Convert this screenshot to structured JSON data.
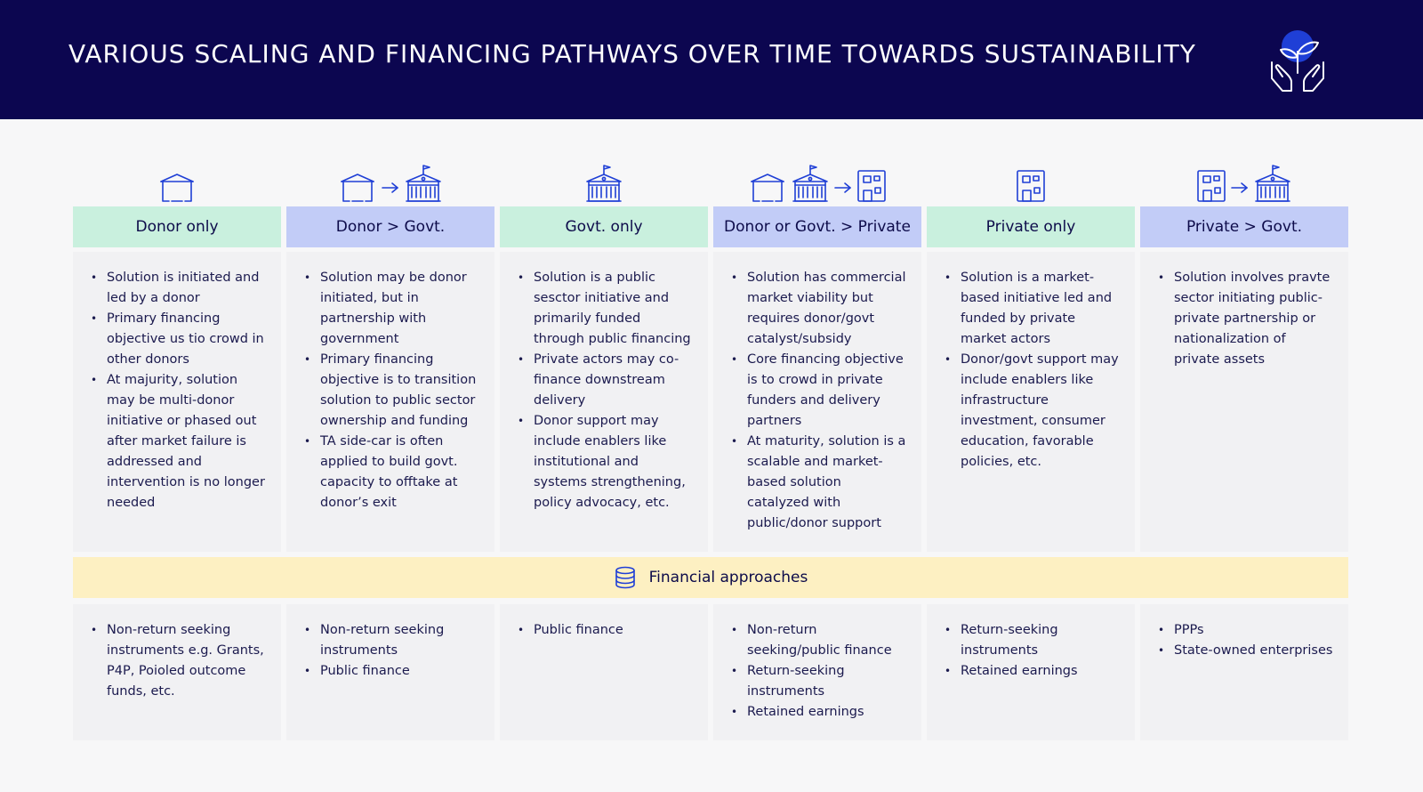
{
  "header": {
    "title": "VARIOUS SCALING AND FINANCING PATHWAYS OVER TIME TOWARDS SUSTAINABILITY",
    "logo_icon": "hands-plant-icon"
  },
  "colors": {
    "header_bg": "#0c0650",
    "green_header": "#c9f0de",
    "blue_header": "#c2ccf7",
    "yellow_bar": "#fdf0c2",
    "icon_blue": "#1f3fd6"
  },
  "pathways": [
    {
      "title": "Donor only",
      "icons": [
        "house-icon"
      ],
      "points": [
        "Solution is initiated and led by a donor",
        "Primary financing objective us tio crowd in other donors",
        "At majurity, solution may be multi-donor initiative or phased out after market failure is addressed and intervention is no longer needed"
      ],
      "financing": [
        "Non-return seeking instruments e.g. Grants, P4P, Poioled outcome funds, etc."
      ]
    },
    {
      "title": "Donor > Govt.",
      "icons": [
        "house-icon",
        "arrow-right-icon",
        "government-building-icon"
      ],
      "points": [
        "Solution may be donor initiated, but in partnership with government",
        "Primary financing objective is to transition solution to public sector ownership and funding",
        "TA side-car is often applied to build govt. capacity to offtake at donor’s exit"
      ],
      "financing": [
        "Non-return seeking instruments",
        "Public finance"
      ]
    },
    {
      "title": "Govt. only",
      "icons": [
        "government-building-icon"
      ],
      "points": [
        "Solution is a public sesctor initiative and primarily funded through public financing",
        "Private actors may co-finance downstream delivery",
        "Donor support may include enablers like institutional and systems strengthening, policy advocacy, etc."
      ],
      "financing": [
        "Public finance"
      ]
    },
    {
      "title": "Donor or Govt. > Private",
      "icons": [
        "house-icon",
        "government-building-icon",
        "arrow-right-icon",
        "office-building-icon"
      ],
      "points": [
        "Solution has commercial market viability but requires donor/govt catalyst/subsidy",
        "Core financing objective is to crowd in private funders and delivery partners",
        "At maturity, solution is a scalable and market-based solution catalyzed with public/donor support"
      ],
      "financing": [
        "Non-return seeking/public finance",
        "Return-seeking instruments",
        "Retained earnings"
      ]
    },
    {
      "title": "Private only",
      "icons": [
        "office-building-icon"
      ],
      "points": [
        "Solution is a market-based initiative led and funded by private market actors",
        "Donor/govt support may include enablers like infrastructure investment, consumer education, favorable policies, etc."
      ],
      "financing": [
        "Return-seeking instruments",
        "Retained earnings"
      ]
    },
    {
      "title": "Private > Govt.",
      "icons": [
        "office-building-icon",
        "arrow-right-icon",
        "government-building-icon"
      ],
      "points": [
        "Solution involves pravte sector initiating public-private partnership or nationalization of private assets"
      ],
      "financing": [
        "PPPs",
        "State-owned enterprises"
      ]
    }
  ],
  "financial_approaches": {
    "label": "Financial approaches",
    "icon": "database-icon"
  }
}
